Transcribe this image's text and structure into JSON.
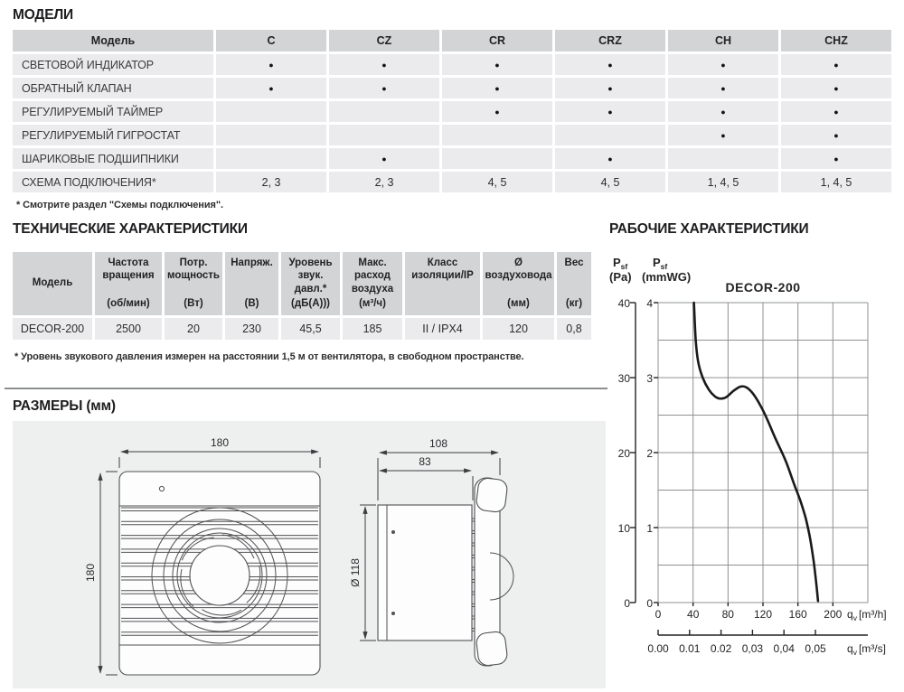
{
  "page": {
    "bg": "#ffffff",
    "text_color": "#222224"
  },
  "colors": {
    "table_header_bg": "#d3d4d6",
    "table_row_bg": "#ebebed",
    "panel_bg": "#eef0f0",
    "grid_line": "#8f9093",
    "curve": "#1a1a1c",
    "divider": "#8d8e90"
  },
  "models_section": {
    "title": "МОДЕЛИ",
    "footnote": "* Смотрите раздел \"Схемы подключения\".",
    "table": {
      "columns": [
        "Модель",
        "C",
        "CZ",
        "CR",
        "CRZ",
        "CH",
        "CHZ"
      ],
      "rows": [
        {
          "label": "СВЕТОВОЙ ИНДИКАТОР",
          "values": [
            "●",
            "●",
            "●",
            "●",
            "●",
            "●"
          ]
        },
        {
          "label": "ОБРАТНЫЙ КЛАПАН",
          "values": [
            "●",
            "●",
            "●",
            "●",
            "●",
            "●"
          ]
        },
        {
          "label": "РЕГУЛИРУЕМЫЙ ТАЙМЕР",
          "values": [
            "",
            "",
            "●",
            "●",
            "●",
            "●"
          ]
        },
        {
          "label": "РЕГУЛИРУЕМЫЙ ГИГРОСТАТ",
          "values": [
            "",
            "",
            "",
            "",
            "●",
            "●"
          ]
        },
        {
          "label": "ШАРИКОВЫЕ ПОДШИПНИКИ",
          "values": [
            "",
            "●",
            "",
            "●",
            "",
            "●"
          ]
        },
        {
          "label": "СХЕМА ПОДКЛЮЧЕНИЯ*",
          "values": [
            "2, 3",
            "2, 3",
            "4, 5",
            "4, 5",
            "1, 4, 5",
            "1, 4, 5"
          ]
        }
      ]
    }
  },
  "tech_section": {
    "title": "ТЕХНИЧЕСКИЕ ХАРАКТЕРИСТИКИ",
    "footnote": "* Уровень звукового давления измерен на расстоянии 1,5 м от вентилятора, в свободном пространстве.",
    "table": {
      "headers": [
        {
          "name": "Модель",
          "unit": ""
        },
        {
          "name": "Частота вращения",
          "unit": "(об/мин)"
        },
        {
          "name": "Потр. мощность",
          "unit": "(Вт)"
        },
        {
          "name": "Напряж.",
          "unit": "(В)"
        },
        {
          "name": "Уровень звук. давл.*",
          "unit": "(дБ(А)))"
        },
        {
          "name": "Макс. расход воздуха",
          "unit": "(м³/ч)"
        },
        {
          "name": "Класс изоляции/IP",
          "unit": ""
        },
        {
          "name": "Ø воздуховода",
          "unit": "(мм)"
        },
        {
          "name": "Вес",
          "unit": "(кг)"
        }
      ],
      "row": [
        "DECOR-200",
        "2500",
        "20",
        "230",
        "45,5",
        "185",
        "II / IPX4",
        "120",
        "0,8"
      ]
    }
  },
  "dimensions_section": {
    "title": "РАЗМЕРЫ (мм)",
    "front_view": {
      "width": "180",
      "height": "180"
    },
    "side_view": {
      "depth_total": "108",
      "depth_body": "83",
      "duct_diameter": "Ø 118"
    }
  },
  "chart_section": {
    "title": "РАБОЧИЕ ХАРАКТЕРИСТИКИ",
    "chart_title": "DECOR-200",
    "y_left": {
      "sym": "P",
      "sub": "sf",
      "unit": "(Pa)"
    },
    "y_right": {
      "sym": "P",
      "sub": "sf",
      "unit": "(mmWG)"
    },
    "x_primary": {
      "sym": "q",
      "sub": "v",
      "unit": "[m³/h]"
    },
    "x_secondary": {
      "sym": "q",
      "sub": "v",
      "unit": "[m³/s]"
    }
  },
  "chart_data": {
    "type": "line",
    "title": "DECOR-200",
    "x_axis": {
      "label": "qv [m³/h]",
      "ticks": [
        "0",
        "40",
        "80",
        "120",
        "160",
        "200"
      ],
      "range": [
        0,
        240
      ],
      "grid_step": 40
    },
    "x_axis_secondary": {
      "label": "qv [m³/s]",
      "tick_labels": [
        "0.00",
        "0.01",
        "0.02",
        "0,03",
        "0,04",
        "0,05"
      ],
      "tick_values_m3s": [
        0,
        0.01,
        0.02,
        0.03,
        0.04,
        0.05
      ]
    },
    "y_axis_left": {
      "label": "Psf (Pa)",
      "ticks": [
        "40",
        "30",
        "20",
        "10",
        "0"
      ],
      "range": [
        0,
        40
      ]
    },
    "y_axis_right": {
      "label": "Psf (mmWG)",
      "ticks": [
        "4",
        "3",
        "2",
        "1",
        "0"
      ],
      "range": [
        0,
        4
      ],
      "grid_step": 0.5
    },
    "grid": true,
    "legend": "none",
    "series": [
      {
        "name": "DECOR-200",
        "x_unit": "m³/h",
        "y_unit": "mmWG",
        "points": [
          [
            41,
            4.0
          ],
          [
            43,
            3.5
          ],
          [
            46,
            3.2
          ],
          [
            51,
            3.0
          ],
          [
            58,
            2.84
          ],
          [
            65,
            2.75
          ],
          [
            71,
            2.72
          ],
          [
            78,
            2.74
          ],
          [
            86,
            2.82
          ],
          [
            94,
            2.88
          ],
          [
            101,
            2.87
          ],
          [
            109,
            2.78
          ],
          [
            117,
            2.63
          ],
          [
            125,
            2.44
          ],
          [
            133,
            2.22
          ],
          [
            141,
            2.02
          ],
          [
            147,
            1.86
          ],
          [
            155,
            1.6
          ],
          [
            163,
            1.35
          ],
          [
            169,
            1.12
          ],
          [
            174,
            0.85
          ],
          [
            178,
            0.55
          ],
          [
            181,
            0.25
          ],
          [
            183,
            0.02
          ]
        ]
      }
    ]
  }
}
